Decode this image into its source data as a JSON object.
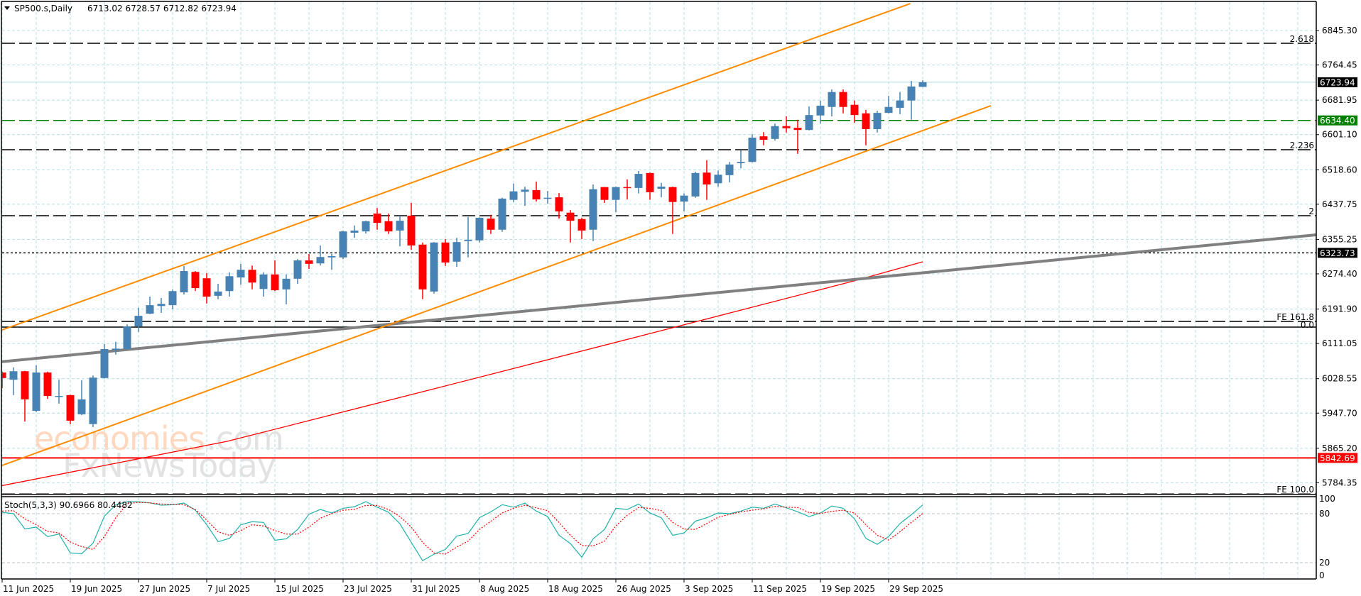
{
  "header": {
    "symbol": "SP500.s,Daily",
    "ohlc": "6713.02 6728.57 6712.82 6723.94",
    "menu_icon": "triangle-down-icon"
  },
  "colors": {
    "bull": "#4682b4",
    "bear": "#ff0000",
    "grid": "#b4dfe3",
    "channel": "#ff8c00",
    "trendline": "#808080",
    "ma": "#ff0000",
    "stoch_k": "#20b2aa",
    "stoch_d": "#ff0000",
    "support_tag": "#008000",
    "price_tag": "#000000",
    "red_tag": "#ff0000",
    "current_line": "#b0dce4"
  },
  "price_axis": {
    "labels": [
      "6845.30",
      "6764.45",
      "6681.95",
      "6601.10",
      "6518.60",
      "6437.75",
      "6355.25",
      "6274.40",
      "6191.90",
      "6111.05",
      "6028.55",
      "5947.70",
      "5865.20",
      "5784.35"
    ]
  },
  "price_tags": [
    {
      "label": "6723.94",
      "price": 6723.94,
      "kind": "current"
    },
    {
      "label": "6634.40",
      "price": 6634.4,
      "kind": "support"
    },
    {
      "label": "6323.73",
      "price": 6323.73,
      "kind": "dotted"
    },
    {
      "label": "5842.69",
      "price": 5842.69,
      "kind": "red"
    }
  ],
  "fib_levels": [
    {
      "label": "2.618",
      "price": 6815.3,
      "style": "dashed"
    },
    {
      "label": "2.236",
      "price": 6565.7,
      "style": "dashed"
    },
    {
      "label": "2",
      "price": 6410.9,
      "style": "dashed"
    },
    {
      "label": "FE 161.8",
      "price": 6162.9,
      "style": "dashed"
    },
    {
      "label": "0.0",
      "price": 6149.5,
      "style": "solid"
    },
    {
      "label": "FE 100.0",
      "price": 5758.0,
      "style": "dashed"
    }
  ],
  "trendlines": {
    "channel_upper": [
      [
        -0.19,
        6141.2
      ],
      [
        79.9,
        6908.5
      ]
    ],
    "channel_lower": [
      [
        -0.19,
        5823.3
      ],
      [
        87.0,
        6668.9
      ]
    ],
    "gray_trend": [
      [
        -0.19,
        6068.0
      ],
      [
        115.6,
        6365.9
      ]
    ],
    "moving_average": [
      [
        -0.19,
        5776.7
      ],
      [
        19.8,
        5881.5
      ],
      [
        38.0,
        6004.7
      ],
      [
        56.06,
        6127.9
      ],
      [
        74.94,
        6257.7
      ],
      [
        81,
        6302.7
      ]
    ]
  },
  "candles": [
    [
      6043,
      6045,
      6006,
      6030
    ],
    [
      6026,
      6055,
      5990,
      6046
    ],
    [
      6046,
      6047,
      5928,
      5980
    ],
    [
      5953,
      6060,
      5950,
      6043
    ],
    [
      6043,
      6045,
      5981,
      5988
    ],
    [
      5986,
      6026,
      5970,
      5988
    ],
    [
      5990,
      5991,
      5922,
      5930
    ],
    [
      5945,
      6025,
      5943,
      5980
    ],
    [
      5922,
      6036,
      5915,
      6031
    ],
    [
      6030,
      6110,
      6029,
      6098
    ],
    [
      6096,
      6115,
      6085,
      6099
    ],
    [
      6098,
      6156,
      6096,
      6151
    ],
    [
      6151,
      6195,
      6138,
      6176
    ],
    [
      6181,
      6221,
      6180,
      6201
    ],
    [
      6199,
      6218,
      6183,
      6204
    ],
    [
      6201,
      6238,
      6191,
      6234
    ],
    [
      6231,
      6293,
      6226,
      6281
    ],
    [
      6279,
      6281,
      6234,
      6241
    ],
    [
      6264,
      6276,
      6205,
      6221
    ],
    [
      6223,
      6251,
      6215,
      6233
    ],
    [
      6234,
      6278,
      6221,
      6269
    ],
    [
      6266,
      6298,
      6249,
      6284
    ],
    [
      6284,
      6294,
      6238,
      6254
    ],
    [
      6239,
      6278,
      6221,
      6273
    ],
    [
      6273,
      6306,
      6234,
      6236
    ],
    [
      6238,
      6273,
      6203,
      6263
    ],
    [
      6263,
      6309,
      6251,
      6306
    ],
    [
      6306,
      6321,
      6286,
      6298
    ],
    [
      6299,
      6341,
      6294,
      6314
    ],
    [
      6313,
      6321,
      6284,
      6316
    ],
    [
      6313,
      6376,
      6309,
      6374
    ],
    [
      6371,
      6388,
      6359,
      6376
    ],
    [
      6374,
      6399,
      6369,
      6398
    ],
    [
      6416,
      6429,
      6378,
      6394
    ],
    [
      6398,
      6416,
      6368,
      6374
    ],
    [
      6376,
      6411,
      6339,
      6399
    ],
    [
      6411,
      6441,
      6331,
      6341
    ],
    [
      6343,
      6348,
      6215,
      6238
    ],
    [
      6233,
      6349,
      6228,
      6348
    ],
    [
      6348,
      6356,
      6293,
      6301
    ],
    [
      6303,
      6359,
      6291,
      6349
    ],
    [
      6351,
      6408,
      6313,
      6354
    ],
    [
      6353,
      6407,
      6348,
      6406
    ],
    [
      6404,
      6413,
      6368,
      6378
    ],
    [
      6378,
      6453,
      6373,
      6451
    ],
    [
      6448,
      6486,
      6443,
      6468
    ],
    [
      6467,
      6479,
      6434,
      6472
    ],
    [
      6471,
      6491,
      6444,
      6449
    ],
    [
      6452,
      6469,
      6439,
      6453
    ],
    [
      6454,
      6464,
      6404,
      6421
    ],
    [
      6418,
      6424,
      6348,
      6399
    ],
    [
      6403,
      6406,
      6356,
      6376
    ],
    [
      6378,
      6484,
      6351,
      6473
    ],
    [
      6478,
      6478,
      6441,
      6448
    ],
    [
      6448,
      6479,
      6419,
      6478
    ],
    [
      6478,
      6496,
      6449,
      6477
    ],
    [
      6476,
      6516,
      6463,
      6509
    ],
    [
      6511,
      6512,
      6448,
      6466
    ],
    [
      6474,
      6488,
      6454,
      6479
    ],
    [
      6478,
      6479,
      6368,
      6443
    ],
    [
      6444,
      6463,
      6421,
      6458
    ],
    [
      6456,
      6514,
      6453,
      6511
    ],
    [
      6512,
      6541,
      6448,
      6484
    ],
    [
      6487,
      6517,
      6479,
      6507
    ],
    [
      6506,
      6537,
      6489,
      6531
    ],
    [
      6534,
      6564,
      6522,
      6537
    ],
    [
      6537,
      6602,
      6536,
      6594
    ],
    [
      6597,
      6607,
      6576,
      6589
    ],
    [
      6591,
      6627,
      6587,
      6621
    ],
    [
      6621,
      6644,
      6606,
      6616
    ],
    [
      6617,
      6636,
      6556,
      6612
    ],
    [
      6612,
      6667,
      6611,
      6647
    ],
    [
      6646,
      6681,
      6627,
      6669
    ],
    [
      6666,
      6707,
      6644,
      6701
    ],
    [
      6701,
      6707,
      6651,
      6666
    ],
    [
      6671,
      6681,
      6629,
      6647
    ],
    [
      6651,
      6659,
      6576,
      6614
    ],
    [
      6614,
      6657,
      6606,
      6652
    ],
    [
      6652,
      6692,
      6651,
      6666
    ],
    [
      6664,
      6701,
      6649,
      6681
    ],
    [
      6681,
      6727,
      6636,
      6714
    ],
    [
      6713.02,
      6728.57,
      6712.82,
      6723.94
    ]
  ],
  "date_labels": [
    {
      "label": "11 Jun 2025",
      "bar": 0
    },
    {
      "label": "19 Jun 2025",
      "bar": 6
    },
    {
      "label": "27 Jun 2025",
      "bar": 12
    },
    {
      "label": "7 Jul 2025",
      "bar": 18
    },
    {
      "label": "15 Jul 2025",
      "bar": 24
    },
    {
      "label": "23 Jul 2025",
      "bar": 30
    },
    {
      "label": "31 Jul 2025",
      "bar": 36
    },
    {
      "label": "8 Aug 2025",
      "bar": 42
    },
    {
      "label": "18 Aug 2025",
      "bar": 48
    },
    {
      "label": "26 Aug 2025",
      "bar": 54
    },
    {
      "label": "3 Sep 2025",
      "bar": 60
    },
    {
      "label": "11 Sep 2025",
      "bar": 66
    },
    {
      "label": "19 Sep 2025",
      "bar": 72
    },
    {
      "label": "29 Sep 2025",
      "bar": 78
    }
  ],
  "stochastic": {
    "label": "Stoch(5,3,3) 90.6966 80.4482",
    "axis_labels": [
      {
        "label": "100",
        "value": 100
      },
      {
        "label": "80",
        "value": 80
      },
      {
        "label": "20",
        "value": 20
      },
      {
        "label": "0",
        "value": 0
      }
    ],
    "levels": [
      80,
      20
    ],
    "k": [
      81.7,
      80,
      61.3,
      63.6,
      52,
      55,
      31.9,
      31,
      44,
      77,
      91,
      94.7,
      94.7,
      93.3,
      90.4,
      91,
      93,
      84.3,
      66.5,
      45.7,
      49.7,
      66.5,
      70.2,
      69.3,
      47.4,
      49.2,
      60.7,
      79.4,
      85.2,
      80.9,
      86.6,
      88.6,
      94.7,
      88,
      81.7,
      67.6,
      44.8,
      22.4,
      30.4,
      36.2,
      52.6,
      55.8,
      75.1,
      82.3,
      91,
      88,
      93,
      83.2,
      76.5,
      53.5,
      43.4,
      26.7,
      49.2,
      60.7,
      86.6,
      85.2,
      91.8,
      80.9,
      75.1,
      53.5,
      56.4,
      70.8,
      75.1,
      80.9,
      80,
      83.2,
      88,
      86.6,
      91.8,
      87.2,
      82.3,
      76.5,
      80.9,
      89.5,
      86.6,
      73.7,
      49.7,
      42.5,
      52,
      67.9,
      78.8,
      90.7
    ],
    "d": [
      83.2,
      83.7,
      73.7,
      66.5,
      58.4,
      56.4,
      45.4,
      39.7,
      36.2,
      52,
      75,
      92.4,
      93.8,
      93.3,
      91.8,
      91.5,
      91,
      85.2,
      72.2,
      57.8,
      53.5,
      59.3,
      66.5,
      65,
      59.3,
      55,
      55,
      63.6,
      74.5,
      80,
      84.3,
      85.2,
      90.1,
      90.1,
      85.2,
      76.5,
      63.6,
      44.8,
      31.9,
      30.4,
      39.1,
      46.3,
      60.7,
      70.8,
      80.9,
      86.6,
      90.4,
      87.2,
      83.7,
      69.3,
      53.5,
      41.1,
      40.5,
      46.3,
      65,
      78,
      87.5,
      86.6,
      83.7,
      69.3,
      61.3,
      60.7,
      67.9,
      75.7,
      79.1,
      82.3,
      84.3,
      86,
      88.9,
      88,
      87.5,
      81.4,
      80.3,
      82.9,
      84.3,
      80.9,
      66.5,
      53.5,
      47.7,
      57.8,
      69.3,
      80.4
    ]
  },
  "watermark": {
    "line1": "economies",
    "line1_suffix": ".com",
    "line2": "FxNewsToday"
  }
}
